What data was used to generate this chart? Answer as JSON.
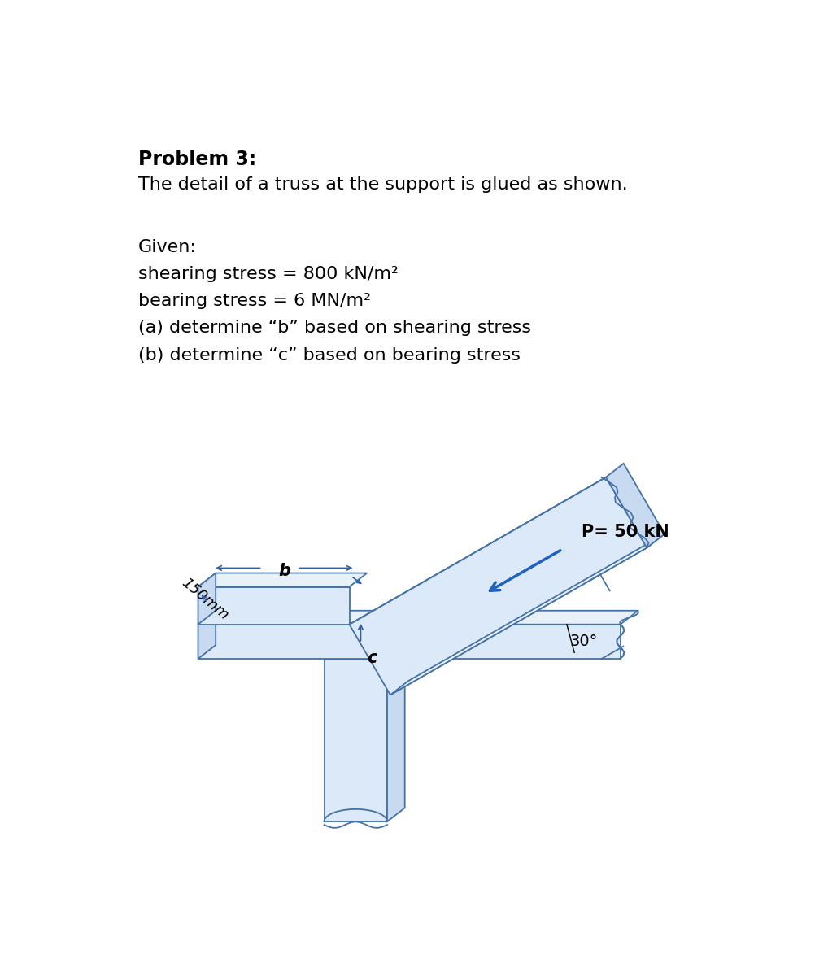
{
  "title": "Problem 3:",
  "subtitle": "The detail of a truss at the support is glued as shown.",
  "given_label": "Given:",
  "line1": "shearing stress = 800 kN/m²",
  "line2": "bearing stress = 6 MN/m²",
  "line3": "(a) determine “b” based on shearing stress",
  "line4": "(b) determine “c” based on bearing stress",
  "p_label": "P= 50 kN",
  "angle_label": "30°",
  "b_label": "b",
  "c_label": "c",
  "dim_label": "150mm",
  "bg_color": "#ffffff",
  "fill_light": "#dce9f8",
  "fill_mid": "#c8daf0",
  "fill_top": "#e8f0f8",
  "line_color": "#4472a8",
  "arrow_color": "#2060c0",
  "text_color": "#000000",
  "dim_color": "#3060a0"
}
